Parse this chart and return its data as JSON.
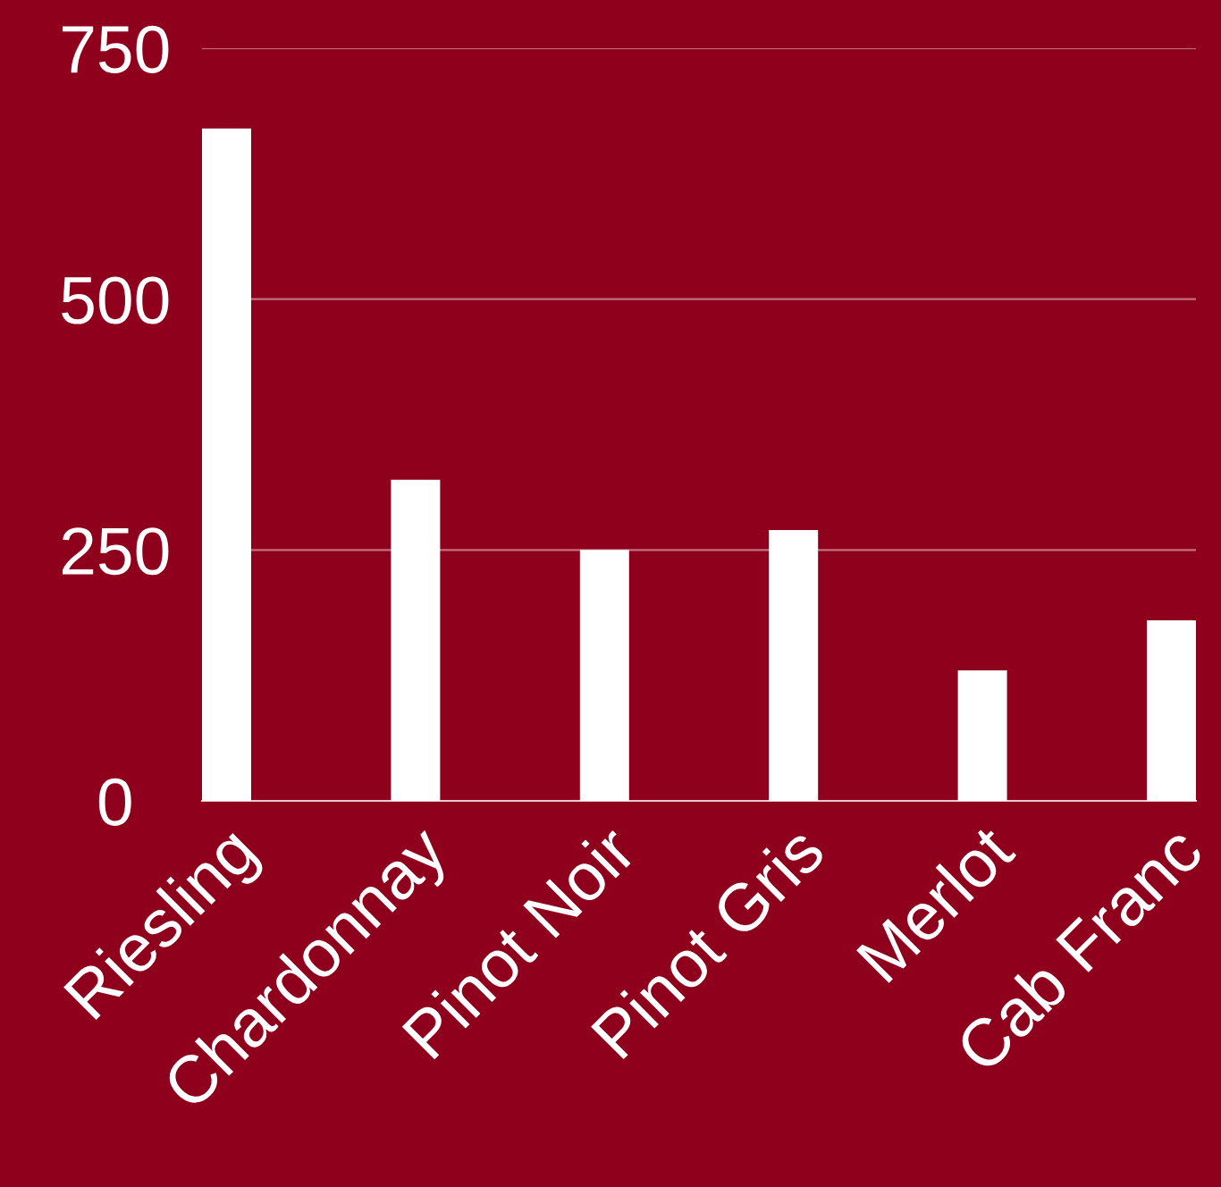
{
  "chart_data": {
    "type": "bar",
    "categories": [
      "Riesling",
      "Chardonnay",
      "Pinot Noir",
      "Pinot Gris",
      "Merlot",
      "Cab Franc"
    ],
    "values": [
      670,
      320,
      250,
      270,
      130,
      180
    ],
    "color": "#ffffff",
    "ylim": [
      0,
      750
    ],
    "yticks": [
      0,
      250,
      500,
      750
    ],
    "grid": "y"
  }
}
